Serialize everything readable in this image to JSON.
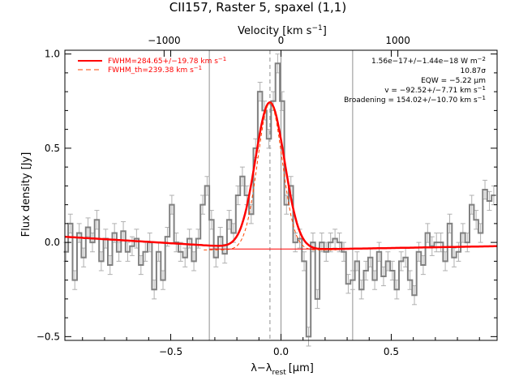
{
  "chart_data": {
    "type": "line",
    "title": "CII157, Raster 5, spaxel (1,1)",
    "xlabel": "λ−λ",
    "xlabel_sub": "rest",
    "xlabel_unit": "[μm]",
    "ylabel": "Flux density [Jy]",
    "top_xlabel": "Velocity [km s",
    "top_xlabel_sup": "−1",
    "top_xlabel_end": "]",
    "xlim": [
      -0.98,
      0.98
    ],
    "ylim": [
      -0.52,
      1.02
    ],
    "x_ticks": [
      -0.5,
      0.0,
      0.5
    ],
    "x_tick_labels": [
      "−0.5",
      "0.0",
      "0.5"
    ],
    "y_ticks": [
      -0.5,
      0.0,
      0.5,
      1.0
    ],
    "y_tick_labels": [
      "−0.5",
      "0.0",
      "0.5",
      "1.0"
    ],
    "top_ticks": [
      -0.53,
      0.0,
      0.53
    ],
    "top_tick_labels": [
      "−1000",
      "0",
      "1000"
    ],
    "vlines_solid": [
      -0.325,
      0.0,
      0.325
    ],
    "vline_dashed": -0.05,
    "series": [
      {
        "name": "",
        "style": "steps",
        "color": "#808080",
        "x": [
          -0.975,
          -0.955,
          -0.935,
          -0.915,
          -0.895,
          -0.875,
          -0.855,
          -0.835,
          -0.815,
          -0.795,
          -0.775,
          -0.755,
          -0.735,
          -0.715,
          -0.695,
          -0.675,
          -0.655,
          -0.635,
          -0.615,
          -0.595,
          -0.575,
          -0.555,
          -0.535,
          -0.515,
          -0.495,
          -0.475,
          -0.455,
          -0.435,
          -0.415,
          -0.395,
          -0.375,
          -0.355,
          -0.335,
          -0.315,
          -0.295,
          -0.275,
          -0.255,
          -0.235,
          -0.215,
          -0.195,
          -0.175,
          -0.155,
          -0.135,
          -0.115,
          -0.095,
          -0.075,
          -0.055,
          -0.035,
          -0.015,
          0.005,
          0.025,
          0.045,
          0.065,
          0.085,
          0.105,
          0.125,
          0.145,
          0.165,
          0.185,
          0.205,
          0.225,
          0.245,
          0.265,
          0.285,
          0.305,
          0.325,
          0.345,
          0.365,
          0.385,
          0.405,
          0.425,
          0.445,
          0.465,
          0.485,
          0.505,
          0.525,
          0.545,
          0.565,
          0.585,
          0.605,
          0.625,
          0.645,
          0.665,
          0.685,
          0.705,
          0.725,
          0.745,
          0.765,
          0.785,
          0.805,
          0.825,
          0.845,
          0.865,
          0.885,
          0.905,
          0.925,
          0.945,
          0.965
        ],
        "y": [
          -0.05,
          0.1,
          -0.2,
          0.05,
          -0.08,
          0.08,
          0.0,
          0.12,
          -0.1,
          0.02,
          -0.12,
          0.05,
          -0.05,
          0.06,
          -0.05,
          -0.02,
          0.02,
          -0.12,
          -0.05,
          0.0,
          -0.25,
          -0.05,
          -0.2,
          0.03,
          0.2,
          0.0,
          -0.05,
          -0.08,
          0.02,
          -0.1,
          0.02,
          0.2,
          0.3,
          0.12,
          -0.08,
          0.03,
          -0.06,
          0.12,
          0.05,
          0.25,
          0.35,
          0.25,
          0.15,
          0.5,
          0.8,
          0.7,
          0.55,
          0.75,
          0.95,
          0.75,
          0.2,
          0.3,
          0.0,
          0.02,
          -0.1,
          -0.5,
          0.0,
          -0.3,
          0.0,
          -0.05,
          0.0,
          0.02,
          0.0,
          -0.05,
          -0.22,
          -0.2,
          -0.1,
          -0.25,
          -0.15,
          -0.08,
          -0.2,
          -0.05,
          -0.18,
          -0.1,
          -0.15,
          -0.25,
          -0.1,
          -0.08,
          -0.2,
          -0.28,
          -0.05,
          -0.12,
          0.05,
          -0.02,
          0.0,
          0.0,
          -0.1,
          0.1,
          -0.08,
          -0.05,
          0.05,
          0.0,
          0.2,
          0.12,
          0.05,
          0.28,
          0.22,
          0.25
        ],
        "err": 0.05
      },
      {
        "name": "FWHM=284.65+/−19.78 km s",
        "name_sup": "−1",
        "style": "solid",
        "color": "#ff0000",
        "center": -0.05,
        "amplitude": 0.78,
        "sigma": 0.066,
        "baseline": [
          [
            -0.98,
            0.03
          ],
          [
            0.0,
            -0.04
          ],
          [
            0.98,
            -0.02
          ]
        ]
      },
      {
        "name": "FWHM_th=239.38 km s",
        "name_sup": "−1",
        "style": "dashed",
        "color": "#ff4500",
        "center": -0.05,
        "amplitude": 0.78,
        "sigma": 0.056,
        "baseline_const": -0.04
      },
      {
        "name": "",
        "style": "baseline",
        "color": "#ff0000",
        "x": [
          -0.325,
          0.325
        ],
        "y": [
          -0.035,
          -0.035
        ]
      }
    ],
    "annotations": [
      {
        "text": "1.56e−17+/−1.44e−18 W m",
        "sup": "−2"
      },
      {
        "text": "10.87σ",
        "sup": ""
      },
      {
        "text": "EQW = −5.22 μm",
        "sup": ""
      },
      {
        "text": "v = −92.52+/−7.71 km s",
        "sup": "−1"
      },
      {
        "text": "Broadening = 154.02+/−10.70 km s",
        "sup": "−1"
      }
    ],
    "grid": false,
    "legend_position": "top-left"
  }
}
